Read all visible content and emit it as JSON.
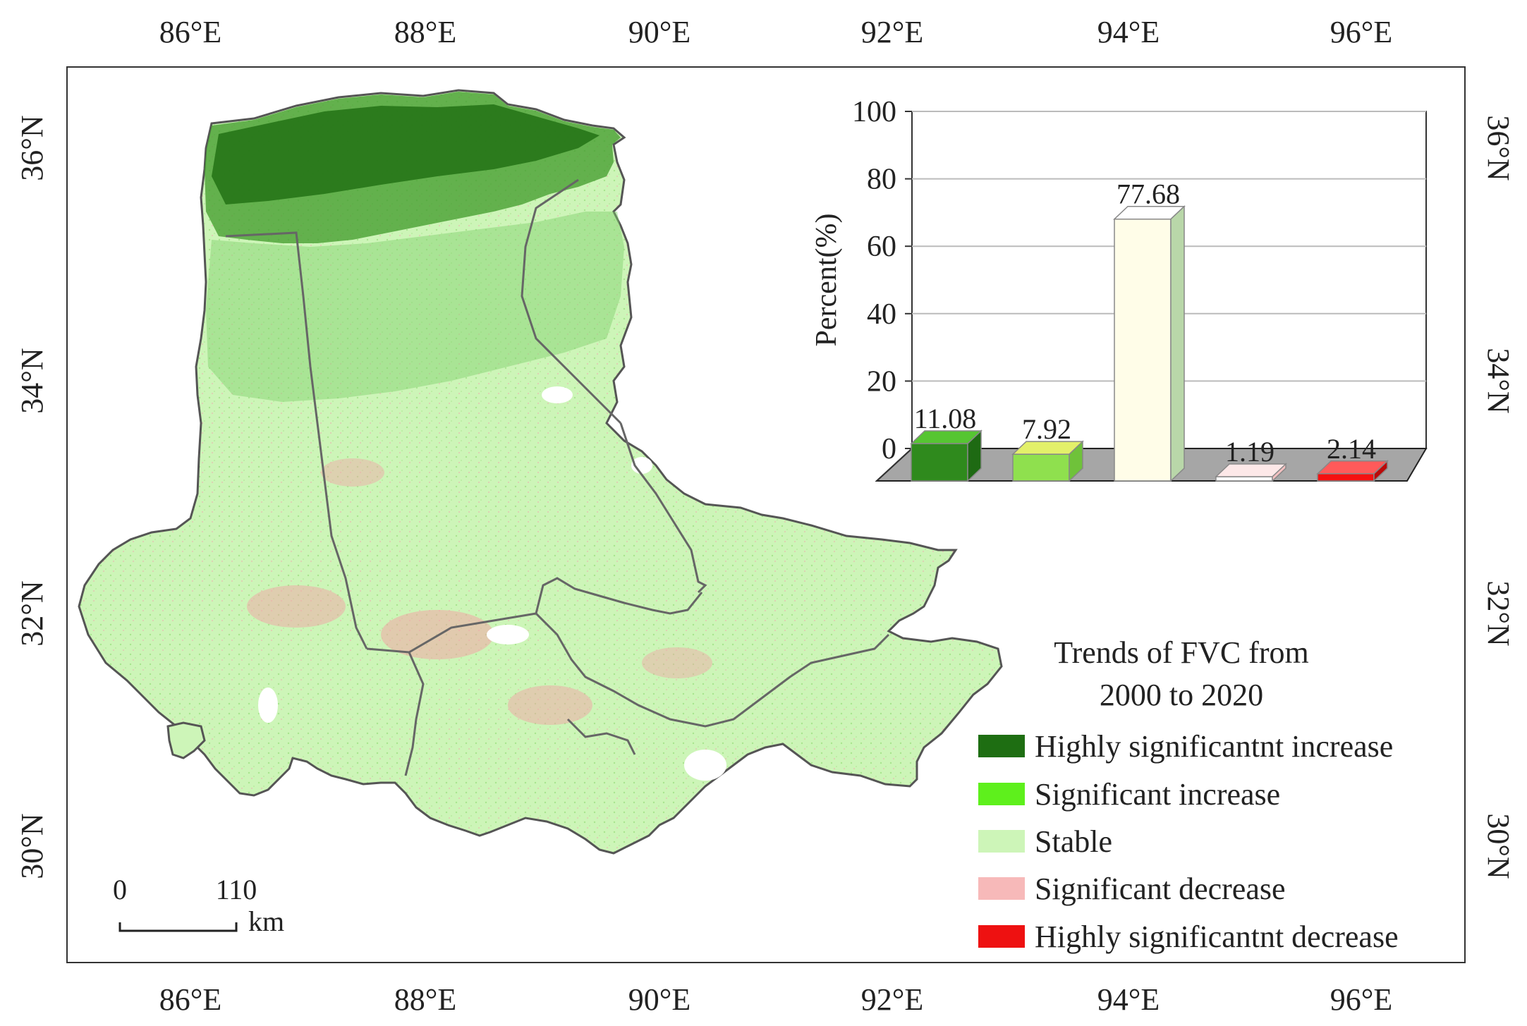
{
  "map": {
    "lon_labels": [
      "86°E",
      "88°E",
      "90°E",
      "92°E",
      "94°E",
      "96°E"
    ],
    "lat_labels": [
      "36°N",
      "34°N",
      "32°N",
      "30°N"
    ],
    "scale_bar": {
      "start": "0",
      "end": "110",
      "unit": "km"
    }
  },
  "legend": {
    "title_line1": "Trends of FVC from",
    "title_line2": "2000 to 2020",
    "items": [
      {
        "label": "Highly significantnt increase",
        "color": "#1e6e12"
      },
      {
        "label": "Significant increase",
        "color": "#5ef01c"
      },
      {
        "label": "Stable",
        "color": "#cdf5b8"
      },
      {
        "label": "Significant decrease",
        "color": "#f7b9b9"
      },
      {
        "label": "Highly significantnt decrease",
        "color": "#ee1111"
      }
    ]
  },
  "chart_data": {
    "type": "bar",
    "ylabel": "Percent(%)",
    "ylim": [
      0,
      100
    ],
    "yticks": [
      "0",
      "20",
      "40",
      "60",
      "80",
      "100"
    ],
    "categories": [
      "Highly significantnt increase",
      "Significant increase",
      "Stable",
      "Significant decrease",
      "Highly significantnt decrease"
    ],
    "values": [
      11.08,
      7.92,
      77.68,
      1.19,
      2.14
    ],
    "value_labels": [
      "11.08",
      "7.92",
      "77.68",
      "1.19",
      "2.14"
    ],
    "grid": true
  }
}
